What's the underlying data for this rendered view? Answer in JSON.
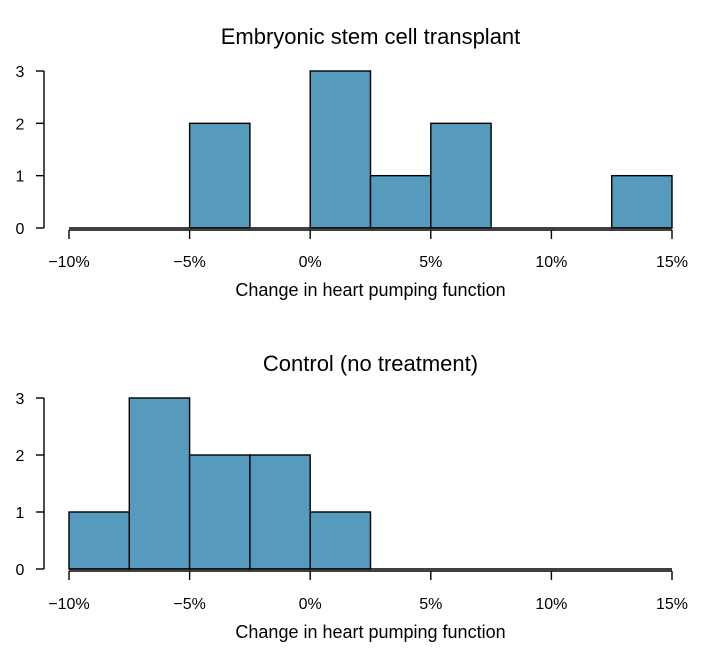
{
  "chart_data": [
    {
      "type": "bar",
      "title": "Embryonic stem cell transplant",
      "xlabel": "Change in heart pumping function",
      "ylabel": "",
      "bin_width": 2.5,
      "xlim": [
        -10,
        15
      ],
      "ylim": [
        0,
        3
      ],
      "x_ticks": [
        -10,
        -5,
        0,
        5,
        10,
        15
      ],
      "x_tick_labels": [
        "−10%",
        "−5%",
        "0%",
        "5%",
        "10%",
        "15%"
      ],
      "y_ticks": [
        0,
        1,
        2,
        3
      ],
      "y_tick_labels": [
        "0",
        "1",
        "2",
        "3"
      ],
      "bins": [
        {
          "start": -10,
          "end": -7.5,
          "count": 0
        },
        {
          "start": -7.5,
          "end": -5,
          "count": 0
        },
        {
          "start": -5,
          "end": -2.5,
          "count": 2
        },
        {
          "start": -2.5,
          "end": 0,
          "count": 0
        },
        {
          "start": 0,
          "end": 2.5,
          "count": 3
        },
        {
          "start": 2.5,
          "end": 5,
          "count": 1
        },
        {
          "start": 5,
          "end": 7.5,
          "count": 2
        },
        {
          "start": 7.5,
          "end": 10,
          "count": 0
        },
        {
          "start": 10,
          "end": 12.5,
          "count": 0
        },
        {
          "start": 12.5,
          "end": 15,
          "count": 1
        }
      ],
      "bar_color": "#569bbd"
    },
    {
      "type": "bar",
      "title": "Control (no treatment)",
      "xlabel": "Change in heart pumping function",
      "ylabel": "",
      "bin_width": 2.5,
      "xlim": [
        -10,
        15
      ],
      "ylim": [
        0,
        3
      ],
      "x_ticks": [
        -10,
        -5,
        0,
        5,
        10,
        15
      ],
      "x_tick_labels": [
        "−10%",
        "−5%",
        "0%",
        "5%",
        "10%",
        "15%"
      ],
      "y_ticks": [
        0,
        1,
        2,
        3
      ],
      "y_tick_labels": [
        "0",
        "1",
        "2",
        "3"
      ],
      "bins": [
        {
          "start": -10,
          "end": -7.5,
          "count": 1
        },
        {
          "start": -7.5,
          "end": -5,
          "count": 3
        },
        {
          "start": -5,
          "end": -2.5,
          "count": 2
        },
        {
          "start": -2.5,
          "end": 0,
          "count": 2
        },
        {
          "start": 0,
          "end": 2.5,
          "count": 1
        },
        {
          "start": 2.5,
          "end": 5,
          "count": 0
        },
        {
          "start": 5,
          "end": 7.5,
          "count": 0
        },
        {
          "start": 7.5,
          "end": 10,
          "count": 0
        },
        {
          "start": 10,
          "end": 12.5,
          "count": 0
        },
        {
          "start": 12.5,
          "end": 15,
          "count": 0
        }
      ],
      "bar_color": "#569bbd"
    }
  ]
}
